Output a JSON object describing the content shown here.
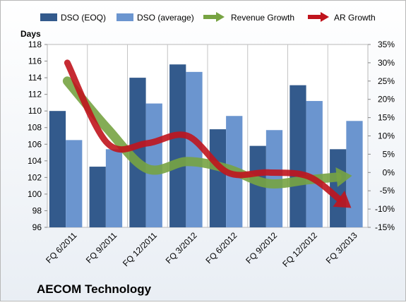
{
  "chart_data": {
    "type": "bar",
    "ylabel_left": "Days",
    "title": "AECOM Technology",
    "categories": [
      "FQ 6/2011",
      "FQ 9/2011",
      "FQ 12/2011",
      "FQ 3/2012",
      "FQ 6/2012",
      "FQ 9/2012",
      "FQ 12/2012",
      "FQ 3/2013"
    ],
    "ylim_left": [
      96,
      118
    ],
    "yticks_left": [
      "96",
      "98",
      "100",
      "102",
      "104",
      "106",
      "108",
      "110",
      "112",
      "114",
      "116",
      "118"
    ],
    "ylim_right": [
      -15,
      35
    ],
    "yticks_right": [
      "-15%",
      "-10%",
      "-5%",
      "0%",
      "5%",
      "10%",
      "15%",
      "20%",
      "25%",
      "30%",
      "35%"
    ],
    "series": [
      {
        "name": "DSO (EOQ)",
        "values": [
          110.0,
          103.3,
          114.0,
          115.6,
          107.8,
          105.8,
          113.1,
          105.4
        ]
      },
      {
        "name": "DSO (average)",
        "values": [
          106.5,
          105.4,
          110.9,
          114.7,
          109.4,
          107.7,
          111.2,
          108.8
        ]
      }
    ],
    "trend_series": [
      {
        "name": "Revenue Growth",
        "values": [
          25,
          12,
          1,
          3,
          1,
          -3,
          -2,
          -1
        ]
      },
      {
        "name": "AR Growth",
        "values": [
          30,
          8,
          8,
          10,
          0,
          0,
          -1,
          -9
        ]
      }
    ],
    "grid": false,
    "legend_position": "top"
  },
  "colors": {
    "eoq": "#335a8c",
    "avg": "#6b95cf",
    "revenue": "#77a342",
    "ar": "#c0141d",
    "plot_bg": "#ffffff",
    "frame": "#b8b8b8"
  }
}
